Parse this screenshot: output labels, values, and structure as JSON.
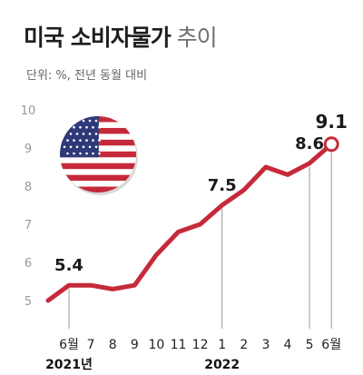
{
  "header": {
    "title_strong": "미국 소비자물가",
    "title_light": "추이",
    "subtitle": "단위: %, 전년 동월 대비"
  },
  "colors": {
    "line": "#c62a3a",
    "marker_fill": "#ffffff",
    "guide": "#999999",
    "flag_red": "#c62a3a",
    "flag_blue": "#2e3a78"
  },
  "flag_icon": "us-flag-icon",
  "chart_data": {
    "type": "line",
    "x": [
      "6월",
      "7",
      "8",
      "9",
      "10",
      "11",
      "12",
      "1",
      "2",
      "3",
      "4",
      "5",
      "6월"
    ],
    "year_labels": [
      {
        "text": "2021년",
        "at_index": 0
      },
      {
        "text": "2022",
        "at_index": 7
      }
    ],
    "series": [
      {
        "values": [
          5.4,
          5.4,
          5.3,
          5.4,
          6.2,
          6.8,
          7.0,
          7.5,
          7.9,
          8.5,
          8.3,
          8.6,
          9.1
        ]
      }
    ],
    "y_start": 5.0,
    "ylim": [
      5,
      10
    ],
    "yticks": [
      5,
      6,
      7,
      8,
      9,
      10
    ],
    "labels": [
      {
        "index": 0,
        "text": "5.4"
      },
      {
        "index": 7,
        "text": "7.5"
      },
      {
        "index": 11,
        "text": "8.6"
      },
      {
        "index": 12,
        "text": "9.1"
      }
    ],
    "grid": false
  }
}
